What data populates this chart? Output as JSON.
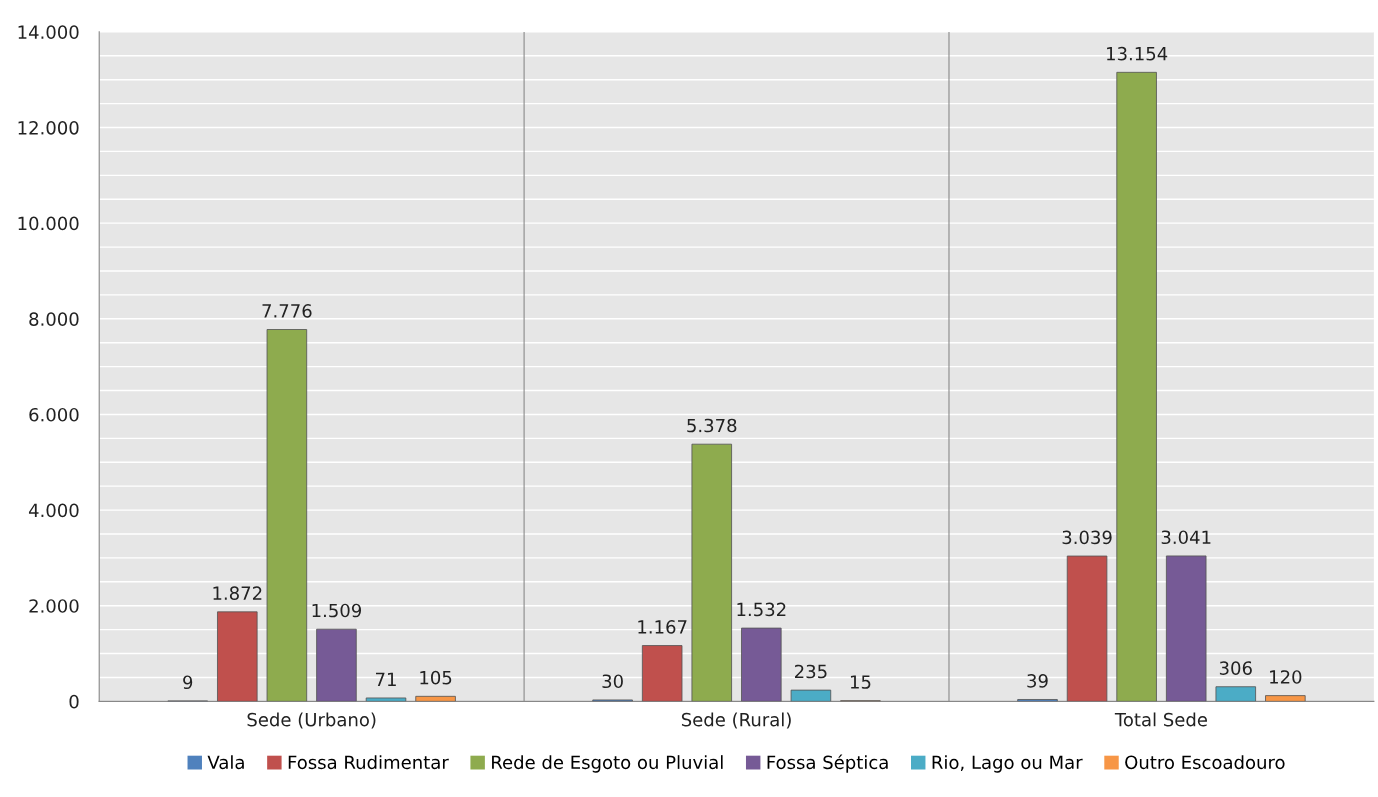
{
  "chart_data": {
    "type": "bar",
    "categories": [
      "Sede (Urbano)",
      "Sede (Rural)",
      "Total Sede"
    ],
    "series": [
      {
        "name": "Vala",
        "color": "#4f81bd",
        "values": [
          9,
          30,
          39
        ],
        "value_labels": [
          "9",
          "30",
          "39"
        ]
      },
      {
        "name": "Fossa Rudimentar",
        "color": "#c0504d",
        "values": [
          1872,
          1167,
          3039
        ],
        "value_labels": [
          "1.872",
          "1.167",
          "3.039"
        ]
      },
      {
        "name": "Rede de Esgoto ou Pluvial",
        "color": "#8eab4e",
        "values": [
          7776,
          5378,
          13154
        ],
        "value_labels": [
          "7.776",
          "5.378",
          "13.154"
        ]
      },
      {
        "name": "Fossa Séptica",
        "color": "#765a96",
        "values": [
          1509,
          1532,
          3041
        ],
        "value_labels": [
          "1.509",
          "1.532",
          "3.041"
        ]
      },
      {
        "name": "Rio, Lago ou Mar",
        "color": "#4bacc6",
        "values": [
          71,
          235,
          306
        ],
        "value_labels": [
          "71",
          "235",
          "306"
        ]
      },
      {
        "name": "Outro Escoadouro",
        "color": "#f79646",
        "values": [
          105,
          15,
          120
        ],
        "value_labels": [
          "105",
          "15",
          "120"
        ]
      }
    ],
    "ylim": [
      0,
      14000
    ],
    "yticks": [
      {
        "value": 0,
        "label": "0"
      },
      {
        "value": 500,
        "label": null
      },
      {
        "value": 1000,
        "label": null
      },
      {
        "value": 1500,
        "label": null
      },
      {
        "value": 2000,
        "label": "2.000"
      },
      {
        "value": 2500,
        "label": null
      },
      {
        "value": 3000,
        "label": null
      },
      {
        "value": 3500,
        "label": null
      },
      {
        "value": 4000,
        "label": "4.000"
      },
      {
        "value": 4500,
        "label": null
      },
      {
        "value": 5000,
        "label": null
      },
      {
        "value": 5500,
        "label": null
      },
      {
        "value": 6000,
        "label": "6.000"
      },
      {
        "value": 6500,
        "label": null
      },
      {
        "value": 7000,
        "label": null
      },
      {
        "value": 7500,
        "label": null
      },
      {
        "value": 8000,
        "label": "8.000"
      },
      {
        "value": 8500,
        "label": null
      },
      {
        "value": 9000,
        "label": null
      },
      {
        "value": 9500,
        "label": null
      },
      {
        "value": 10000,
        "label": "10.000"
      },
      {
        "value": 10500,
        "label": null
      },
      {
        "value": 11000,
        "label": null
      },
      {
        "value": 11500,
        "label": null
      },
      {
        "value": 12000,
        "label": "12.000"
      },
      {
        "value": 12500,
        "label": null
      },
      {
        "value": 13000,
        "label": null
      },
      {
        "value": 13500,
        "label": null
      },
      {
        "value": 14000,
        "label": "14.000"
      }
    ],
    "grid": true,
    "legend": "bottom"
  }
}
